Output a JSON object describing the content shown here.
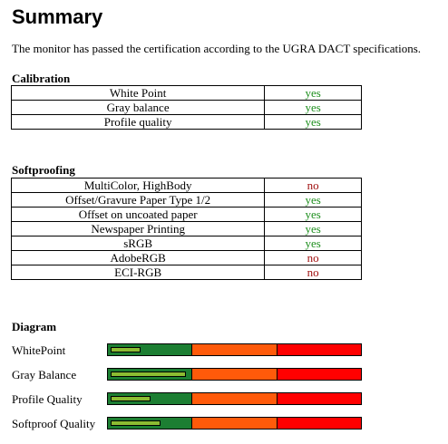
{
  "title": "Summary",
  "intro": "The monitor has passed the certification according to the UGRA DACT specifications.",
  "calibration": {
    "heading": "Calibration",
    "rows": [
      {
        "label": "White Point",
        "value": "yes"
      },
      {
        "label": "Gray balance",
        "value": "yes"
      },
      {
        "label": "Profile quality",
        "value": "yes"
      }
    ]
  },
  "softproofing": {
    "heading": "Softproofing",
    "rows": [
      {
        "label": "MultiColor, HighBody",
        "value": "no"
      },
      {
        "label": "Offset/Gravure Paper Type 1/2",
        "value": "yes"
      },
      {
        "label": "Offset on uncoated paper",
        "value": "yes"
      },
      {
        "label": "Newspaper Printing",
        "value": "yes"
      },
      {
        "label": "sRGB",
        "value": "yes"
      },
      {
        "label": "AdobeRGB",
        "value": "no"
      },
      {
        "label": "ECI-RGB",
        "value": "no"
      }
    ]
  },
  "diagram": {
    "heading": "Diagram",
    "scale_colors": [
      "#1c7e32",
      "#ff5a0a",
      "#ff0000"
    ],
    "bar_color": "#8cbc32",
    "rows": [
      {
        "label": "WhitePoint",
        "level": 0.11
      },
      {
        "label": "Gray Balance",
        "level": 0.29
      },
      {
        "label": "Profile Quality",
        "level": 0.15
      },
      {
        "label": "Softproof Quality",
        "level": 0.19
      }
    ]
  }
}
